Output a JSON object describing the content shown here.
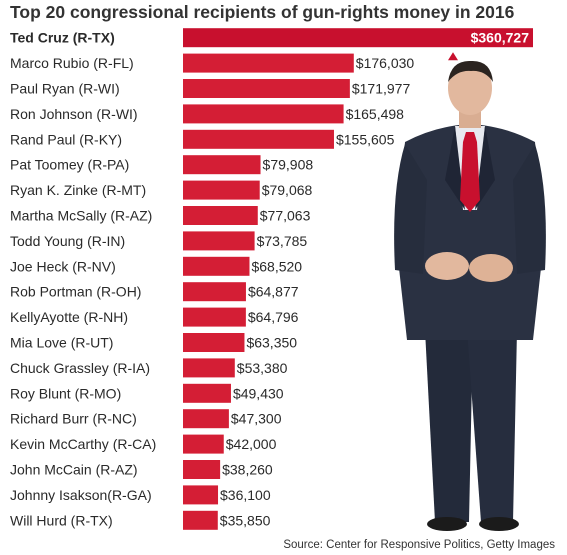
{
  "chart_data": {
    "type": "bar",
    "orientation": "horizontal",
    "title": "Top 20 congressional recipients of gun-rights money in 2016",
    "xlabel": "",
    "ylabel": "",
    "categories": [
      "Ted Cruz (R-TX)",
      "Marco Rubio (R-FL)",
      "Paul Ryan (R-WI)",
      "Ron Johnson (R-WI)",
      "Rand Paul (R-KY)",
      "Pat Toomey (R-PA)",
      "Ryan K. Zinke (R-MT)",
      "Martha McSally (R-AZ)",
      "Todd Young (R-IN)",
      "Joe Heck (R-NV)",
      "Rob Portman (R-OH)",
      "KellyAyotte (R-NH)",
      "Mia Love (R-UT)",
      "Chuck Grassley (R-IA)",
      "Roy Blunt (R-MO)",
      "Richard Burr (R-NC)",
      "Kevin McCarthy (R-CA)",
      "John McCain (R-AZ)",
      "Johnny  Isakson(R-GA)",
      "Will Hurd (R-TX)"
    ],
    "values": [
      360727,
      176030,
      171977,
      165498,
      155605,
      79908,
      79068,
      77063,
      73785,
      68520,
      64877,
      64796,
      63350,
      53380,
      49430,
      47300,
      42000,
      38260,
      36100,
      35850
    ],
    "value_labels": [
      "$360,727",
      "$176,030",
      "$171,977",
      "$165,498",
      "$155,605",
      "$79,908",
      "$79,068",
      "$77,063",
      "$73,785",
      "$68,520",
      "$64,877",
      "$64,796",
      "$63,350",
      "$53,380",
      "$49,430",
      "$47,300",
      "$42,000",
      "$38,260",
      "$36,100",
      "$35,850"
    ],
    "highlight_index": 0,
    "bar_color": "#d41e35",
    "highlight_bar_color": "#c8102e",
    "grid": false,
    "legend": "none"
  },
  "source": "Source: Center for Responsive Politics, Getty Images",
  "photo": {
    "subject_icon": "person-in-suit-photo-icon",
    "suit_color": "#2a3142",
    "tie_color": "#c8102e",
    "shirt_color": "#e8eaf0",
    "skin_color": "#e2b89e",
    "hair_color": "#2b2420"
  }
}
